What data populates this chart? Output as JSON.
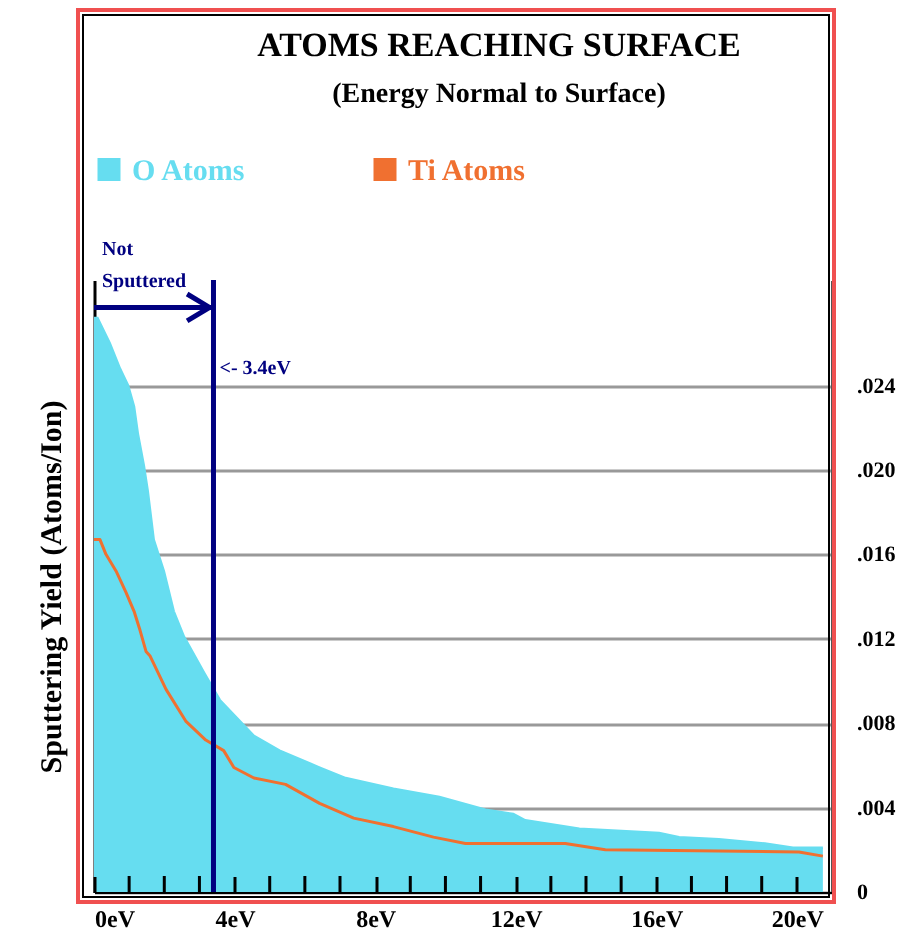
{
  "chart_data": {
    "type": "area",
    "title": "ATOMS REACHING SURFACE",
    "subtitle": "(Energy Normal to Surface)",
    "ylabel": "Sputtering Yield (Atoms/Ion)",
    "series": [
      {
        "name": "O Atoms",
        "color": "#66ddf0",
        "x": [
          0,
          0.1,
          0.45,
          0.74,
          0.97,
          1.14,
          1.25,
          1.42,
          1.53,
          1.7,
          1.99,
          2.27,
          2.56,
          3.13,
          3.58,
          4.15,
          4.55,
          5.28,
          6.42,
          7.16,
          8.52,
          9.83,
          11.14,
          11.93,
          12.27,
          13.81,
          16.08,
          16.65,
          17.78,
          19.09,
          19.89,
          20.74
        ],
        "values": [
          0.0272,
          0.0272,
          0.026,
          0.0248,
          0.024,
          0.023,
          0.0217,
          0.0202,
          0.019,
          0.0167,
          0.0152,
          0.0133,
          0.0121,
          0.0104,
          0.0091,
          0.0081,
          0.0074,
          0.0067,
          0.0059,
          0.0054,
          0.0049,
          0.0045,
          0.0039,
          0.0037,
          0.0034,
          0.003,
          0.0028,
          0.0026,
          0.0025,
          0.0023,
          0.0021,
          0.0021
        ]
      },
      {
        "name": "Ti Atoms",
        "type": "line",
        "color": "#f07030",
        "x": [
          0,
          0.17,
          0.34,
          0.63,
          0.91,
          1.14,
          1.31,
          1.48,
          1.59,
          2.05,
          2.61,
          3.18,
          3.69,
          3.98,
          4.55,
          5.45,
          6.42,
          7.39,
          8.52,
          9.66,
          10.57,
          13.41,
          14.55,
          20.06,
          20.74
        ],
        "values": [
          0.0167,
          0.0167,
          0.016,
          0.0152,
          0.0142,
          0.0133,
          0.0124,
          0.0114,
          0.0112,
          0.0096,
          0.0081,
          0.0072,
          0.0067,
          0.0059,
          0.0054,
          0.0051,
          0.0042,
          0.0035,
          0.0031,
          0.0026,
          0.0023,
          0.0023,
          0.002,
          0.0019,
          0.0017
        ]
      }
    ],
    "xlim": [
      0,
      21
    ],
    "xticks": [
      {
        "value": 0,
        "label": "0eV"
      },
      {
        "value": 1,
        "label": null
      },
      {
        "value": 2,
        "label": null
      },
      {
        "value": 3,
        "label": null
      },
      {
        "value": 4,
        "label": "4eV"
      },
      {
        "value": 5,
        "label": null
      },
      {
        "value": 6,
        "label": null
      },
      {
        "value": 7,
        "label": null
      },
      {
        "value": 8,
        "label": "8eV"
      },
      {
        "value": 9,
        "label": null
      },
      {
        "value": 10,
        "label": null
      },
      {
        "value": 11,
        "label": null
      },
      {
        "value": 12,
        "label": "12eV"
      },
      {
        "value": 13,
        "label": null
      },
      {
        "value": 14,
        "label": null
      },
      {
        "value": 15,
        "label": null
      },
      {
        "value": 16,
        "label": "16eV"
      },
      {
        "value": 17,
        "label": null
      },
      {
        "value": 18,
        "label": null
      },
      {
        "value": 19,
        "label": null
      },
      {
        "value": 20,
        "label": "20eV"
      }
    ],
    "ylim": [
      0,
      0.029
    ],
    "yticks": [
      0,
      {
        "value": 0.004,
        "label": ".004"
      },
      {
        "value": 0.008,
        "label": ".008"
      },
      {
        "value": 0.012,
        "label": ".012"
      },
      {
        "value": 0.016,
        "label": ".016"
      },
      {
        "value": 0.02,
        "label": ".020"
      },
      {
        "value": 0.024,
        "label": ".024"
      }
    ],
    "grid": "y",
    "legend": "top",
    "ref_lines": [
      {
        "axis": "x",
        "value": 3.4,
        "label": "<- 3.4eV",
        "color": "#000080"
      }
    ],
    "annotations": [
      {
        "text": "Not Sputtered",
        "x": 0,
        "y": 0.0277
      }
    ]
  }
}
